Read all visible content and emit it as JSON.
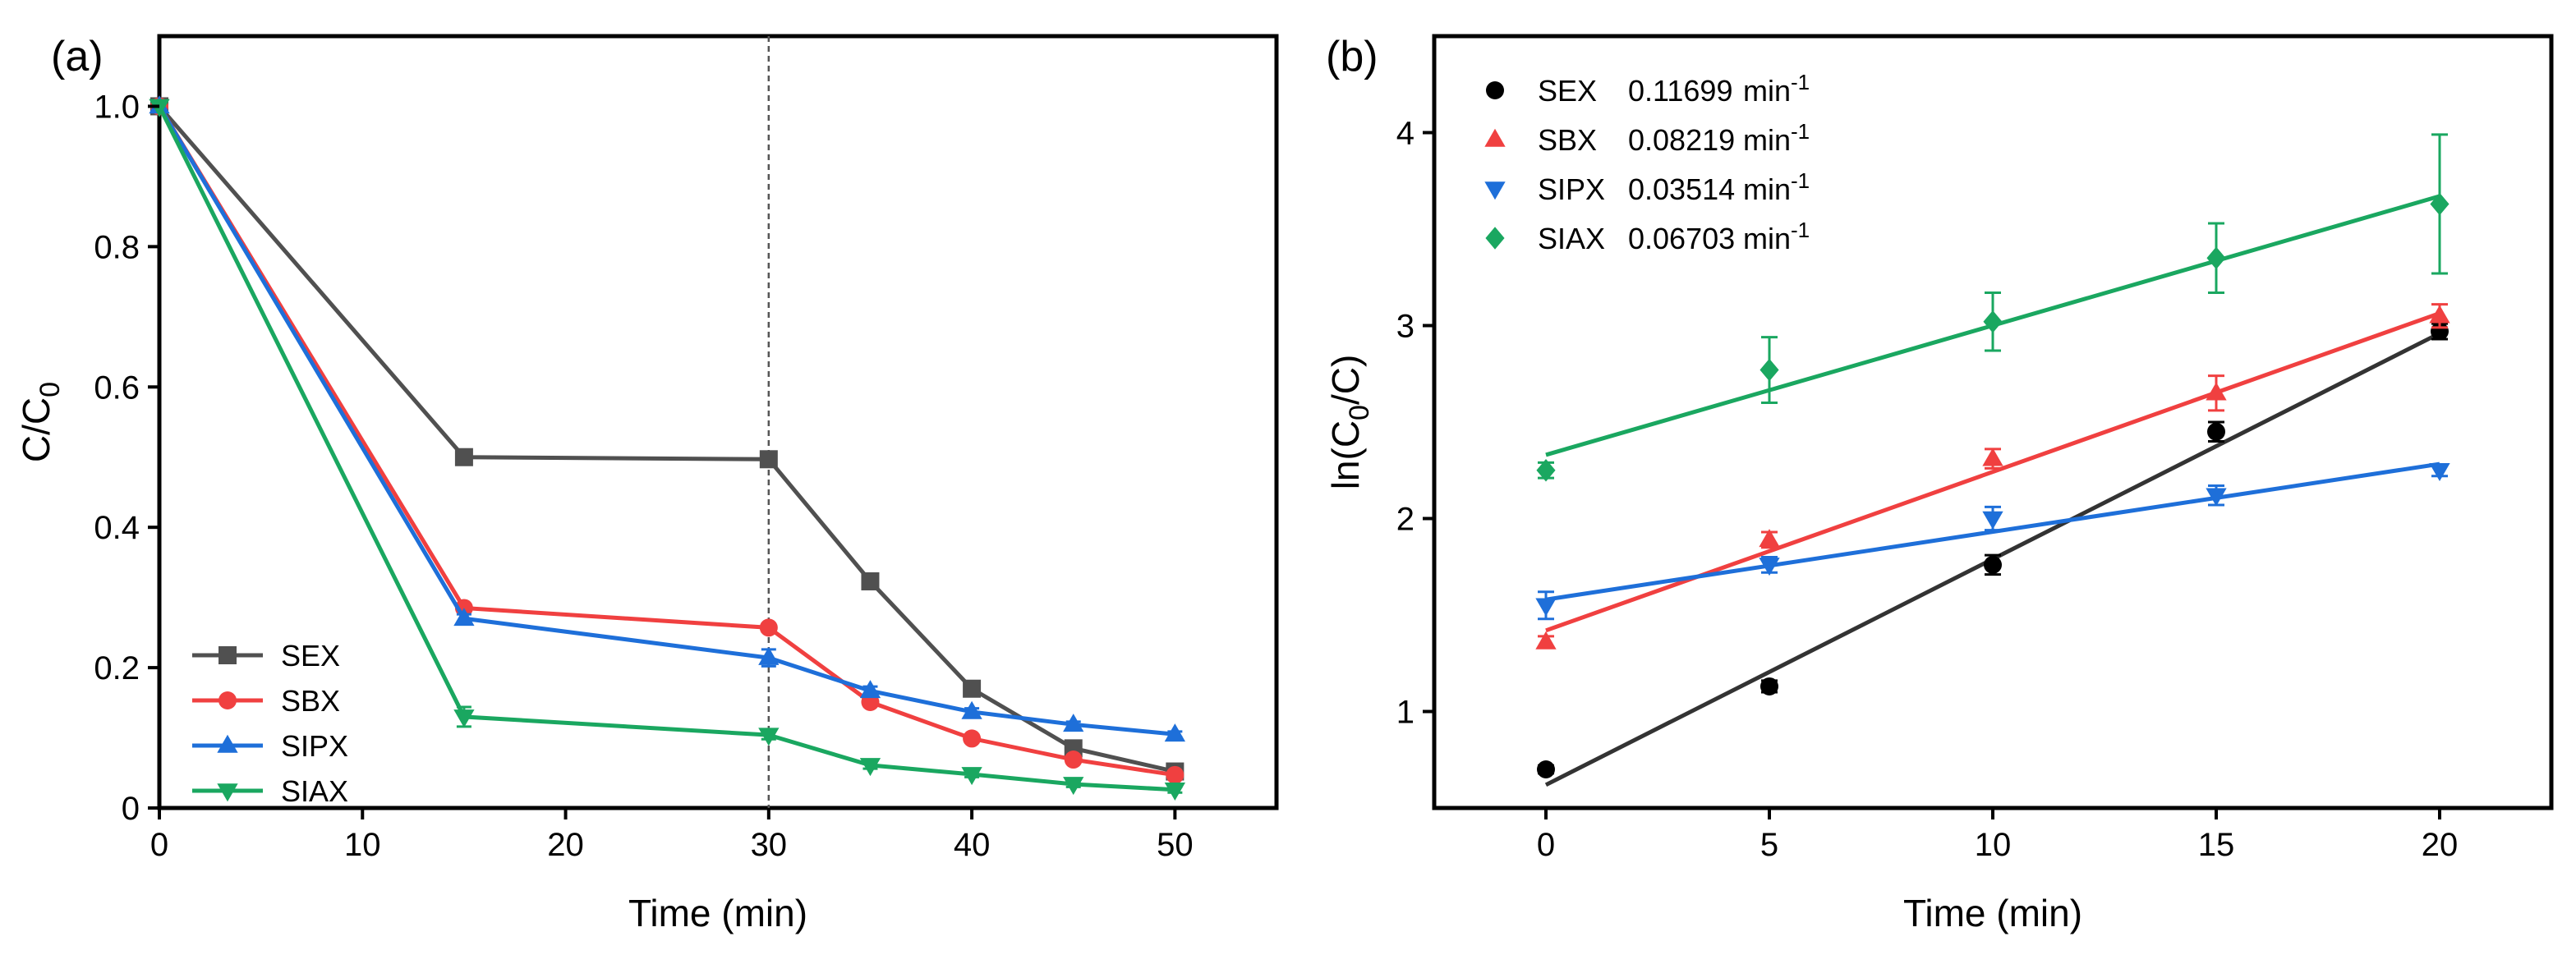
{
  "chart_data": [
    {
      "panel_label": "(a)",
      "type": "line",
      "xlabel": "Time (min)",
      "ylabel_main": "C/C",
      "ylabel_sub": "0",
      "xlim": [
        0,
        55
      ],
      "ylim": [
        0,
        1.1
      ],
      "xticks": [
        0,
        10,
        20,
        30,
        40,
        50
      ],
      "yticks": [
        0,
        0.2,
        0.4,
        0.6,
        0.8,
        1.0
      ],
      "ytick_labels": [
        "0",
        "0.2",
        "0.4",
        "0.6",
        "0.8",
        "1.0"
      ],
      "vline_x": 30,
      "legend_position": "bottom-left",
      "series": [
        {
          "name": "SEX",
          "color": "#505050",
          "marker": "square",
          "x": [
            0,
            15,
            30,
            35,
            40,
            45,
            50
          ],
          "y": [
            1.0,
            0.5,
            0.497,
            0.323,
            0.17,
            0.085,
            0.052
          ],
          "err": [
            0,
            0.005,
            0.008,
            0.005,
            0.005,
            0.005,
            0.004
          ]
        },
        {
          "name": "SBX",
          "color": "#f04040",
          "marker": "circle",
          "x": [
            0,
            15,
            30,
            35,
            40,
            45,
            50
          ],
          "y": [
            1.0,
            0.285,
            0.257,
            0.151,
            0.099,
            0.069,
            0.047
          ],
          "err": [
            0,
            0.006,
            0.006,
            0.006,
            0.005,
            0.004,
            0.004
          ]
        },
        {
          "name": "SIPX",
          "color": "#1e6fd9",
          "marker": "triangle-up",
          "x": [
            0,
            15,
            30,
            35,
            40,
            45,
            50
          ],
          "y": [
            1.0,
            0.27,
            0.214,
            0.167,
            0.137,
            0.119,
            0.105
          ],
          "err": [
            0,
            0.006,
            0.012,
            0.006,
            0.005,
            0.004,
            0.004
          ]
        },
        {
          "name": "SIAX",
          "color": "#1aa760",
          "marker": "triangle-down",
          "x": [
            0,
            15,
            30,
            35,
            40,
            45,
            50
          ],
          "y": [
            1.0,
            0.13,
            0.104,
            0.061,
            0.048,
            0.034,
            0.026
          ],
          "err": [
            0,
            0.014,
            0.006,
            0.005,
            0.004,
            0.004,
            0.004
          ]
        }
      ]
    },
    {
      "panel_label": "(b)",
      "type": "scatter",
      "xlabel": "Time (min)",
      "ylabel_pre": "ln(C",
      "ylabel_sub": "0",
      "ylabel_post": "/C)",
      "xlim": [
        -2.5,
        22.5
      ],
      "ylim": [
        0.5,
        4.5
      ],
      "xticks": [
        0,
        5,
        10,
        15,
        20
      ],
      "yticks": [
        1,
        2,
        3,
        4
      ],
      "legend_position": "top-left",
      "series": [
        {
          "name": "SEX",
          "rate": "0.11699",
          "unit": "min",
          "unit_sup": "-1",
          "color": "#000000",
          "marker": "circle",
          "x": [
            0,
            5,
            10,
            15,
            20
          ],
          "y": [
            0.7,
            1.13,
            1.76,
            2.45,
            2.97
          ],
          "err": [
            0.02,
            0.03,
            0.05,
            0.05,
            0.04
          ],
          "fit": {
            "slope": 0.11699,
            "intercept": 0.62
          }
        },
        {
          "name": "SBX",
          "rate": "0.08219",
          "unit": "min",
          "unit_sup": "-1",
          "color": "#f04040",
          "marker": "triangle-up",
          "x": [
            0,
            5,
            10,
            15,
            20
          ],
          "y": [
            1.36,
            1.89,
            2.31,
            2.65,
            3.05
          ],
          "err": [
            0.03,
            0.04,
            0.05,
            0.09,
            0.06
          ],
          "fit": {
            "slope": 0.08219,
            "intercept": 1.42
          }
        },
        {
          "name": "SIPX",
          "rate": "0.03514",
          "unit": "min",
          "unit_sup": "-1",
          "color": "#1e6fd9",
          "marker": "triangle-down",
          "x": [
            0,
            5,
            10,
            15,
            20
          ],
          "y": [
            1.55,
            1.76,
            2.0,
            2.12,
            2.25
          ],
          "err": [
            0.07,
            0.04,
            0.06,
            0.05,
            0.03
          ],
          "fit": {
            "slope": 0.03514,
            "intercept": 1.58
          }
        },
        {
          "name": "SIAX",
          "rate": "0.06703",
          "unit": "min",
          "unit_sup": "-1",
          "color": "#1aa760",
          "marker": "diamond",
          "x": [
            0,
            5,
            10,
            15,
            20
          ],
          "y": [
            2.25,
            2.77,
            3.02,
            3.35,
            3.63
          ],
          "err": [
            0.04,
            0.17,
            0.15,
            0.18,
            0.36
          ],
          "fit": {
            "slope": 0.06703,
            "intercept": 2.33
          }
        }
      ]
    }
  ]
}
